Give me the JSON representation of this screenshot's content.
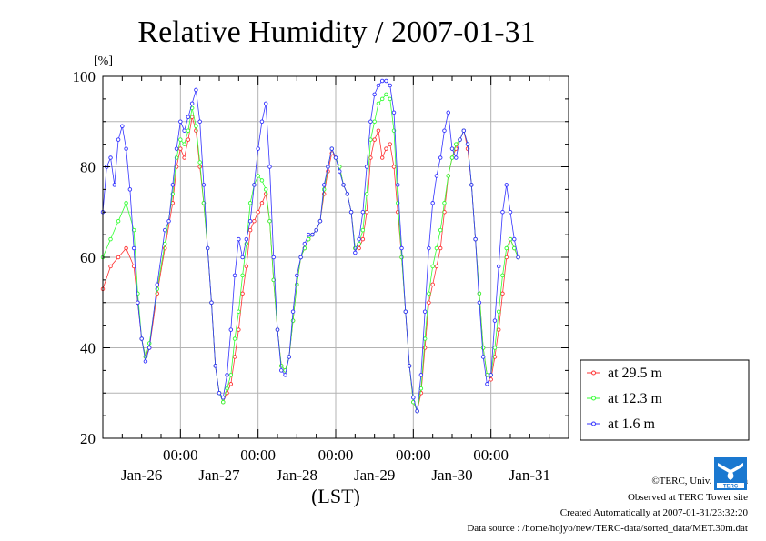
{
  "chart_data": {
    "type": "line",
    "title": "Relative Humidity / 2007-01-31",
    "ylabel_unit": "[%]",
    "xlabel": "(LST)",
    "ylim": [
      20,
      100
    ],
    "yticks": [
      20,
      40,
      60,
      80,
      100
    ],
    "x_range_days": [
      0,
      6
    ],
    "x_midnight_positions_days": [
      1,
      2,
      3,
      4,
      5
    ],
    "x_midnight_labels": [
      "00:00",
      "00:00",
      "00:00",
      "00:00",
      "00:00"
    ],
    "x_date_labels": [
      {
        "label": "Jan-26",
        "day": 0.5
      },
      {
        "label": "Jan-27",
        "day": 1.5
      },
      {
        "label": "Jan-28",
        "day": 2.5
      },
      {
        "label": "Jan-29",
        "day": 3.5
      },
      {
        "label": "Jan-30",
        "day": 4.5
      },
      {
        "label": "Jan-31",
        "day": 5.5
      }
    ],
    "grid": true,
    "legend_position": "right-bottom",
    "series": [
      {
        "name": "at 29.5 m",
        "color": "#ff3333",
        "points": [
          [
            0.0,
            53
          ],
          [
            0.1,
            58
          ],
          [
            0.2,
            60
          ],
          [
            0.3,
            62
          ],
          [
            0.4,
            58
          ],
          [
            0.45,
            50
          ],
          [
            0.5,
            42
          ],
          [
            0.55,
            38
          ],
          [
            0.6,
            40
          ],
          [
            0.7,
            52
          ],
          [
            0.8,
            62
          ],
          [
            0.9,
            72
          ],
          [
            0.95,
            80
          ],
          [
            1.0,
            84
          ],
          [
            1.05,
            82
          ],
          [
            1.1,
            86
          ],
          [
            1.15,
            91
          ],
          [
            1.2,
            88
          ],
          [
            1.25,
            80
          ],
          [
            1.3,
            72
          ],
          [
            1.35,
            62
          ],
          [
            1.4,
            50
          ],
          [
            1.45,
            36
          ],
          [
            1.5,
            30
          ],
          [
            1.55,
            28
          ],
          [
            1.6,
            30
          ],
          [
            1.65,
            32
          ],
          [
            1.7,
            38
          ],
          [
            1.75,
            44
          ],
          [
            1.8,
            52
          ],
          [
            1.85,
            58
          ],
          [
            1.9,
            66
          ],
          [
            1.95,
            68
          ],
          [
            2.0,
            70
          ],
          [
            2.05,
            72
          ],
          [
            2.1,
            74
          ],
          [
            2.15,
            68
          ],
          [
            2.2,
            55
          ],
          [
            2.25,
            44
          ],
          [
            2.3,
            36
          ],
          [
            2.35,
            35
          ],
          [
            2.4,
            38
          ],
          [
            2.45,
            46
          ],
          [
            2.5,
            54
          ],
          [
            2.55,
            60
          ],
          [
            2.6,
            62
          ],
          [
            2.65,
            64
          ],
          [
            2.7,
            65
          ],
          [
            2.75,
            66
          ],
          [
            2.8,
            68
          ],
          [
            2.85,
            74
          ],
          [
            2.9,
            79
          ],
          [
            2.95,
            83
          ],
          [
            3.0,
            82
          ],
          [
            3.05,
            80
          ],
          [
            3.1,
            76
          ],
          [
            3.15,
            74
          ],
          [
            3.2,
            70
          ],
          [
            3.25,
            62
          ],
          [
            3.3,
            62
          ],
          [
            3.35,
            64
          ],
          [
            3.4,
            70
          ],
          [
            3.45,
            82
          ],
          [
            3.5,
            86
          ],
          [
            3.55,
            88
          ],
          [
            3.6,
            82
          ],
          [
            3.65,
            84
          ],
          [
            3.7,
            85
          ],
          [
            3.75,
            80
          ],
          [
            3.8,
            70
          ],
          [
            3.85,
            60
          ],
          [
            3.9,
            48
          ],
          [
            3.95,
            36
          ],
          [
            4.0,
            28
          ],
          [
            4.05,
            26
          ],
          [
            4.1,
            30
          ],
          [
            4.15,
            40
          ],
          [
            4.2,
            50
          ],
          [
            4.25,
            54
          ],
          [
            4.3,
            58
          ],
          [
            4.35,
            62
          ],
          [
            4.4,
            70
          ],
          [
            4.45,
            78
          ],
          [
            4.5,
            82
          ],
          [
            4.55,
            84
          ],
          [
            4.6,
            86
          ],
          [
            4.65,
            88
          ],
          [
            4.7,
            84
          ],
          [
            4.75,
            76
          ],
          [
            4.8,
            64
          ],
          [
            4.85,
            52
          ],
          [
            4.9,
            40
          ],
          [
            4.95,
            34
          ],
          [
            5.0,
            33
          ],
          [
            5.05,
            38
          ],
          [
            5.1,
            44
          ],
          [
            5.15,
            52
          ],
          [
            5.2,
            60
          ],
          [
            5.25,
            64
          ],
          [
            5.3,
            62
          ],
          [
            5.35,
            60
          ]
        ]
      },
      {
        "name": "at 12.3 m",
        "color": "#33ff33",
        "points": [
          [
            0.0,
            60
          ],
          [
            0.1,
            64
          ],
          [
            0.2,
            68
          ],
          [
            0.3,
            72
          ],
          [
            0.4,
            66
          ],
          [
            0.45,
            52
          ],
          [
            0.5,
            42
          ],
          [
            0.55,
            38
          ],
          [
            0.6,
            41
          ],
          [
            0.7,
            53
          ],
          [
            0.8,
            63
          ],
          [
            0.9,
            74
          ],
          [
            0.95,
            82
          ],
          [
            1.0,
            86
          ],
          [
            1.05,
            85
          ],
          [
            1.1,
            88
          ],
          [
            1.15,
            93
          ],
          [
            1.2,
            89
          ],
          [
            1.25,
            81
          ],
          [
            1.3,
            72
          ],
          [
            1.35,
            62
          ],
          [
            1.4,
            50
          ],
          [
            1.45,
            36
          ],
          [
            1.5,
            30
          ],
          [
            1.55,
            28
          ],
          [
            1.6,
            31
          ],
          [
            1.65,
            34
          ],
          [
            1.7,
            42
          ],
          [
            1.75,
            48
          ],
          [
            1.8,
            56
          ],
          [
            1.85,
            63
          ],
          [
            1.9,
            72
          ],
          [
            1.95,
            76
          ],
          [
            2.0,
            78
          ],
          [
            2.05,
            77
          ],
          [
            2.1,
            75
          ],
          [
            2.15,
            68
          ],
          [
            2.2,
            55
          ],
          [
            2.25,
            44
          ],
          [
            2.3,
            36
          ],
          [
            2.35,
            35
          ],
          [
            2.4,
            38
          ],
          [
            2.45,
            46
          ],
          [
            2.5,
            54
          ],
          [
            2.55,
            60
          ],
          [
            2.6,
            62
          ],
          [
            2.65,
            64
          ],
          [
            2.7,
            65
          ],
          [
            2.75,
            66
          ],
          [
            2.8,
            68
          ],
          [
            2.85,
            75
          ],
          [
            2.9,
            80
          ],
          [
            2.95,
            84
          ],
          [
            3.0,
            82
          ],
          [
            3.05,
            80
          ],
          [
            3.1,
            76
          ],
          [
            3.15,
            74
          ],
          [
            3.2,
            70
          ],
          [
            3.25,
            62
          ],
          [
            3.3,
            63
          ],
          [
            3.35,
            66
          ],
          [
            3.4,
            74
          ],
          [
            3.45,
            86
          ],
          [
            3.5,
            90
          ],
          [
            3.55,
            94
          ],
          [
            3.6,
            95
          ],
          [
            3.65,
            96
          ],
          [
            3.7,
            95
          ],
          [
            3.75,
            88
          ],
          [
            3.8,
            72
          ],
          [
            3.85,
            60
          ],
          [
            3.9,
            48
          ],
          [
            3.95,
            36
          ],
          [
            4.0,
            28
          ],
          [
            4.05,
            26
          ],
          [
            4.1,
            31
          ],
          [
            4.15,
            42
          ],
          [
            4.2,
            52
          ],
          [
            4.25,
            58
          ],
          [
            4.3,
            62
          ],
          [
            4.35,
            66
          ],
          [
            4.4,
            72
          ],
          [
            4.45,
            78
          ],
          [
            4.5,
            82
          ],
          [
            4.55,
            85
          ],
          [
            4.6,
            86
          ],
          [
            4.65,
            88
          ],
          [
            4.7,
            85
          ],
          [
            4.75,
            76
          ],
          [
            4.8,
            64
          ],
          [
            4.85,
            52
          ],
          [
            4.9,
            40
          ],
          [
            4.95,
            34
          ],
          [
            5.0,
            34
          ],
          [
            5.05,
            40
          ],
          [
            5.1,
            48
          ],
          [
            5.15,
            56
          ],
          [
            5.2,
            62
          ],
          [
            5.25,
            64
          ],
          [
            5.3,
            62
          ],
          [
            5.35,
            60
          ]
        ]
      },
      {
        "name": "at 1.6 m",
        "color": "#3333ff",
        "points": [
          [
            0.0,
            70
          ],
          [
            0.05,
            80
          ],
          [
            0.1,
            82
          ],
          [
            0.15,
            76
          ],
          [
            0.2,
            86
          ],
          [
            0.25,
            89
          ],
          [
            0.3,
            84
          ],
          [
            0.35,
            75
          ],
          [
            0.4,
            62
          ],
          [
            0.45,
            50
          ],
          [
            0.5,
            42
          ],
          [
            0.55,
            37
          ],
          [
            0.6,
            40
          ],
          [
            0.7,
            54
          ],
          [
            0.8,
            66
          ],
          [
            0.85,
            68
          ],
          [
            0.9,
            76
          ],
          [
            0.95,
            84
          ],
          [
            1.0,
            90
          ],
          [
            1.05,
            88
          ],
          [
            1.1,
            91
          ],
          [
            1.15,
            94
          ],
          [
            1.2,
            97
          ],
          [
            1.25,
            90
          ],
          [
            1.3,
            76
          ],
          [
            1.35,
            62
          ],
          [
            1.4,
            50
          ],
          [
            1.45,
            36
          ],
          [
            1.5,
            30
          ],
          [
            1.55,
            29
          ],
          [
            1.6,
            34
          ],
          [
            1.65,
            44
          ],
          [
            1.7,
            56
          ],
          [
            1.75,
            64
          ],
          [
            1.8,
            60
          ],
          [
            1.85,
            64
          ],
          [
            1.9,
            68
          ],
          [
            1.95,
            76
          ],
          [
            2.0,
            84
          ],
          [
            2.05,
            90
          ],
          [
            2.1,
            94
          ],
          [
            2.15,
            80
          ],
          [
            2.2,
            60
          ],
          [
            2.25,
            44
          ],
          [
            2.3,
            35
          ],
          [
            2.35,
            34
          ],
          [
            2.4,
            38
          ],
          [
            2.45,
            48
          ],
          [
            2.5,
            56
          ],
          [
            2.55,
            60
          ],
          [
            2.6,
            63
          ],
          [
            2.65,
            65
          ],
          [
            2.7,
            65
          ],
          [
            2.75,
            66
          ],
          [
            2.8,
            68
          ],
          [
            2.85,
            76
          ],
          [
            2.9,
            80
          ],
          [
            2.95,
            84
          ],
          [
            3.0,
            82
          ],
          [
            3.05,
            79
          ],
          [
            3.1,
            76
          ],
          [
            3.15,
            74
          ],
          [
            3.2,
            70
          ],
          [
            3.25,
            61
          ],
          [
            3.3,
            64
          ],
          [
            3.35,
            70
          ],
          [
            3.4,
            80
          ],
          [
            3.45,
            90
          ],
          [
            3.5,
            96
          ],
          [
            3.55,
            98
          ],
          [
            3.6,
            99
          ],
          [
            3.65,
            99
          ],
          [
            3.7,
            98
          ],
          [
            3.75,
            92
          ],
          [
            3.8,
            76
          ],
          [
            3.85,
            62
          ],
          [
            3.9,
            48
          ],
          [
            3.95,
            36
          ],
          [
            4.0,
            29
          ],
          [
            4.05,
            26
          ],
          [
            4.1,
            34
          ],
          [
            4.15,
            48
          ],
          [
            4.2,
            62
          ],
          [
            4.25,
            72
          ],
          [
            4.3,
            78
          ],
          [
            4.35,
            82
          ],
          [
            4.4,
            88
          ],
          [
            4.45,
            92
          ],
          [
            4.5,
            84
          ],
          [
            4.55,
            82
          ],
          [
            4.6,
            86
          ],
          [
            4.65,
            88
          ],
          [
            4.7,
            85
          ],
          [
            4.75,
            76
          ],
          [
            4.8,
            64
          ],
          [
            4.85,
            50
          ],
          [
            4.9,
            38
          ],
          [
            4.95,
            32
          ],
          [
            5.0,
            34
          ],
          [
            5.05,
            46
          ],
          [
            5.1,
            58
          ],
          [
            5.15,
            70
          ],
          [
            5.2,
            76
          ],
          [
            5.25,
            70
          ],
          [
            5.3,
            64
          ],
          [
            5.35,
            60
          ]
        ]
      }
    ]
  },
  "footer": {
    "copyright": "©TERC, Univ. Tsukuba",
    "observed": "Observed at TERC Tower site",
    "created": "Created Automatically at 2007-01-31/23:32:20",
    "source": "Data source : /home/hojyo/new/TERC-data/sorted_data/MET.30m.dat"
  },
  "logo": {
    "text": "TERC",
    "color": "#1a78d0"
  }
}
